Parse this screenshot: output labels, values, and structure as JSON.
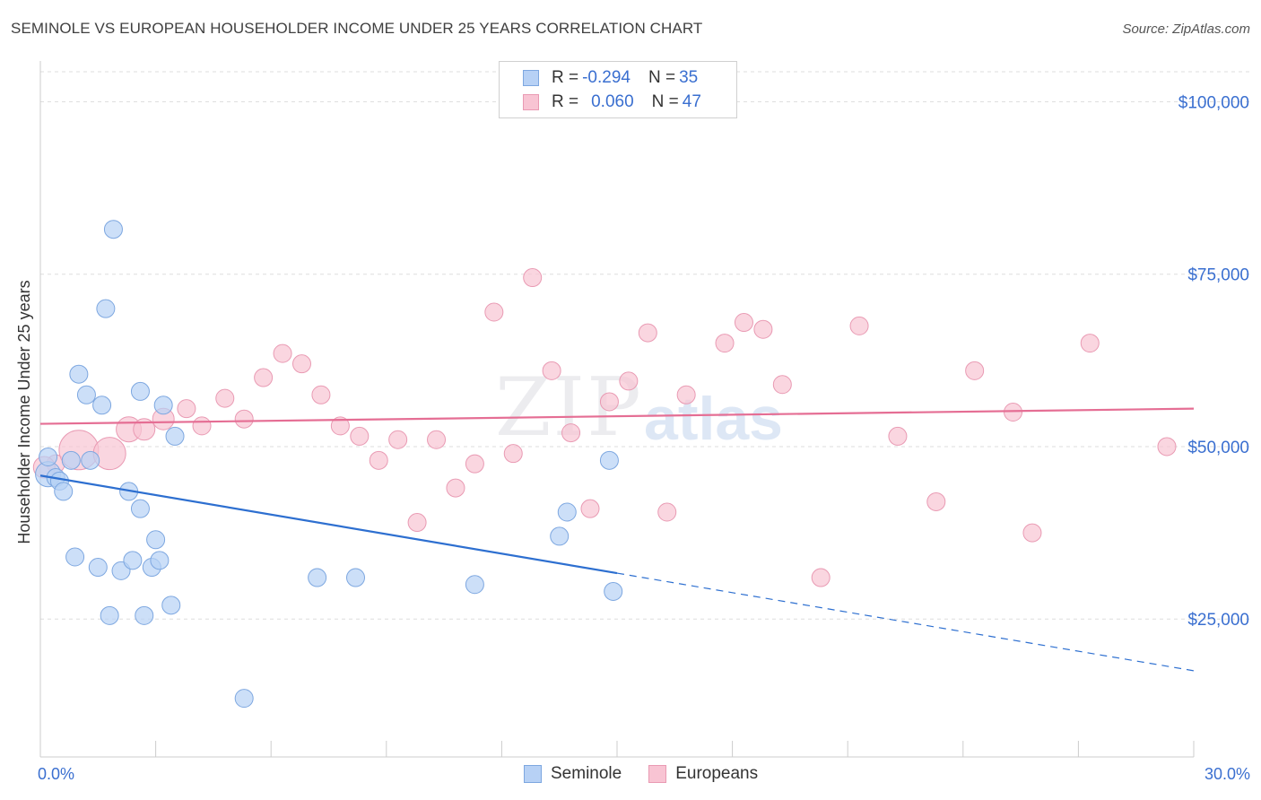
{
  "title": "SEMINOLE VS EUROPEAN HOUSEHOLDER INCOME UNDER 25 YEARS CORRELATION CHART",
  "source": "Source: ZipAtlas.com",
  "watermark": {
    "zip": "ZIP",
    "atlas": "atlas"
  },
  "legend_top": [
    {
      "r_label": "R =",
      "r_value": "-0.294",
      "n_label": "N =",
      "n_value": "35"
    },
    {
      "r_label": "R =",
      "r_value": "0.060",
      "n_label": "N =",
      "n_value": "47"
    }
  ],
  "legend_bottom": [
    "Seminole",
    "Europeans"
  ],
  "colors": {
    "seminole_fill": "#b7d1f5",
    "seminole_stroke": "#7da7e0",
    "seminole_line": "#2d6fd0",
    "europeans_fill": "#f8c4d3",
    "europeans_stroke": "#e99ab3",
    "europeans_line": "#e56e94",
    "axis_label": "#3a6fd0"
  },
  "chart_data": {
    "type": "scatter",
    "ylabel": "Householder Income Under 25 years",
    "xlim": [
      0,
      30
    ],
    "ylim": [
      5000,
      105000
    ],
    "x_tick_labels": [
      "0.0%",
      "30.0%"
    ],
    "y_ticks": [
      25000,
      50000,
      75000,
      100000
    ],
    "y_tick_labels": [
      "$25,000",
      "$50,000",
      "$75,000",
      "$100,000"
    ],
    "series": [
      {
        "name": "Seminole",
        "points": [
          [
            0.2,
            46000
          ],
          [
            0.2,
            48500
          ],
          [
            0.4,
            45500
          ],
          [
            0.5,
            45000
          ],
          [
            0.6,
            43500
          ],
          [
            0.8,
            48000
          ],
          [
            0.9,
            34000
          ],
          [
            1.0,
            60500
          ],
          [
            1.2,
            57500
          ],
          [
            1.3,
            48000
          ],
          [
            1.5,
            32500
          ],
          [
            1.6,
            56000
          ],
          [
            1.7,
            70000
          ],
          [
            1.8,
            25500
          ],
          [
            1.9,
            81500
          ],
          [
            2.1,
            32000
          ],
          [
            2.3,
            43500
          ],
          [
            2.4,
            33500
          ],
          [
            2.6,
            41000
          ],
          [
            2.6,
            58000
          ],
          [
            2.7,
            25500
          ],
          [
            2.9,
            32500
          ],
          [
            3.0,
            36500
          ],
          [
            3.1,
            33500
          ],
          [
            3.2,
            56000
          ],
          [
            3.4,
            27000
          ],
          [
            3.5,
            51500
          ],
          [
            5.3,
            13500
          ],
          [
            7.2,
            31000
          ],
          [
            8.2,
            31000
          ],
          [
            11.3,
            30000
          ],
          [
            13.5,
            37000
          ],
          [
            13.7,
            40500
          ],
          [
            14.8,
            48000
          ],
          [
            14.9,
            29000
          ]
        ],
        "sizes": [
          14,
          10,
          10,
          10,
          10,
          10,
          10,
          10,
          10,
          10,
          10,
          10,
          10,
          10,
          10,
          10,
          10,
          10,
          10,
          10,
          10,
          10,
          10,
          10,
          10,
          10,
          10,
          10,
          10,
          10,
          10,
          10,
          10,
          10,
          10
        ],
        "trend": {
          "x0": 0,
          "y0": 45800,
          "x1": 30,
          "y1": 17500,
          "solid_until_x": 15
        }
      },
      {
        "name": "Europeans",
        "points": [
          [
            0.4,
            47500
          ],
          [
            1.0,
            49500
          ],
          [
            1.8,
            49000
          ],
          [
            2.3,
            52500
          ],
          [
            2.7,
            52500
          ],
          [
            3.2,
            54000
          ],
          [
            3.8,
            55500
          ],
          [
            4.2,
            53000
          ],
          [
            4.8,
            57000
          ],
          [
            5.3,
            54000
          ],
          [
            5.8,
            60000
          ],
          [
            6.3,
            63500
          ],
          [
            6.8,
            62000
          ],
          [
            7.3,
            57500
          ],
          [
            7.8,
            53000
          ],
          [
            8.3,
            51500
          ],
          [
            8.8,
            48000
          ],
          [
            9.3,
            51000
          ],
          [
            9.8,
            39000
          ],
          [
            10.3,
            51000
          ],
          [
            10.8,
            44000
          ],
          [
            11.3,
            47500
          ],
          [
            11.8,
            69500
          ],
          [
            12.3,
            49000
          ],
          [
            12.8,
            74500
          ],
          [
            13.3,
            61000
          ],
          [
            13.8,
            52000
          ],
          [
            14.3,
            41000
          ],
          [
            14.8,
            56500
          ],
          [
            15.3,
            59500
          ],
          [
            15.8,
            66500
          ],
          [
            16.3,
            40500
          ],
          [
            16.8,
            57500
          ],
          [
            17.8,
            65000
          ],
          [
            18.3,
            68000
          ],
          [
            18.8,
            67000
          ],
          [
            19.3,
            59000
          ],
          [
            20.3,
            31000
          ],
          [
            21.3,
            67500
          ],
          [
            22.3,
            51500
          ],
          [
            23.3,
            42000
          ],
          [
            24.3,
            61000
          ],
          [
            25.3,
            55000
          ],
          [
            25.8,
            37500
          ],
          [
            27.3,
            65000
          ],
          [
            29.3,
            50000
          ],
          [
            0.1,
            47000
          ]
        ],
        "sizes": [
          10,
          22,
          18,
          14,
          12,
          12,
          10,
          10,
          10,
          10,
          10,
          10,
          10,
          10,
          10,
          10,
          10,
          10,
          10,
          10,
          10,
          10,
          10,
          10,
          10,
          10,
          10,
          10,
          10,
          10,
          10,
          10,
          10,
          10,
          10,
          10,
          10,
          10,
          10,
          10,
          10,
          10,
          10,
          10,
          10,
          10,
          12
        ],
        "trend": {
          "x0": 0,
          "y0": 53300,
          "x1": 30,
          "y1": 55500,
          "solid_until_x": 30
        }
      }
    ]
  }
}
